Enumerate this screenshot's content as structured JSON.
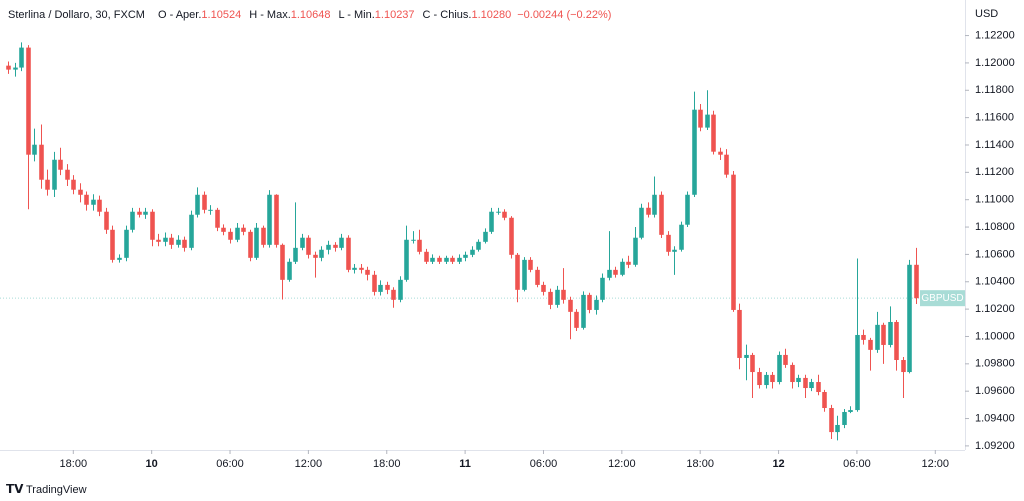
{
  "chart_data": {
    "type": "candlestick",
    "title": "Sterlina / Dollaro, 30, FXCM",
    "ohlc_legend": [
      {
        "label": "O - Aper.",
        "value": "1.10524"
      },
      {
        "label": "H - Max.",
        "value": "1.10648"
      },
      {
        "label": "L - Min.",
        "value": "1.10237"
      },
      {
        "label": "C - Chius.",
        "value": "1.10280"
      }
    ],
    "change": "−0.00244 (−0.22%)",
    "symbol": "GBPUSD",
    "currency": "USD",
    "up_color": "#26a69a",
    "down_color": "#ef5350",
    "grid": false,
    "open": [
      1.1198,
      1.11951,
      1.11966,
      1.12112,
      1.11329,
      1.11402,
      1.11146,
      1.11073,
      1.11292,
      1.11219,
      1.11146,
      1.11073,
      1.11036,
      1.10963,
      1.11,
      1.10912,
      1.1078,
      1.1056,
      1.10575,
      1.1078,
      1.10912,
      1.1089,
      1.10912,
      1.10707,
      1.10692,
      1.10722,
      1.1067,
      1.10707,
      1.10648,
      1.1089,
      1.11036,
      1.10926,
      1.10926,
      1.10795,
      1.10765,
      1.10707,
      1.10795,
      1.10765,
      1.10575,
      1.10795,
      1.1067,
      1.11036,
      1.1067,
      1.10414,
      1.10546,
      1.10648,
      1.10722,
      1.10597,
      1.10575,
      1.10634,
      1.1067,
      1.10648,
      1.10722,
      1.10487,
      1.10502,
      1.10487,
      1.10451,
      1.10326,
      1.10377,
      1.10341,
      1.10268,
      1.10414,
      1.10707,
      1.10707,
      1.10619,
      1.10546,
      1.10575,
      1.10546,
      1.10575,
      1.10546,
      1.10575,
      1.10597,
      1.10634,
      1.10692,
      1.10765,
      1.10912,
      1.10912,
      1.10868,
      1.10597,
      1.10341,
      1.1056,
      1.10487,
      1.10377,
      1.10326,
      1.10231,
      1.10341,
      1.10268,
      1.1018,
      1.10063,
      1.10304,
      1.10194,
      1.10268,
      1.10429,
      1.10487,
      1.10451,
      1.10546,
      1.10524,
      1.10722,
      1.10941,
      1.1089,
      1.11036,
      1.10743,
      1.10619,
      1.10634,
      1.10817,
      1.11036,
      1.11658,
      1.11527,
      1.11622,
      1.11351,
      1.11329,
      1.11183,
      1.10194,
      1.09843,
      1.09865,
      1.0974,
      1.09645,
      1.09719,
      1.09667,
      1.09865,
      1.09792,
      1.09667,
      1.09697,
      1.09623,
      1.09667,
      1.09594,
      1.09477,
      1.09301,
      1.09353,
      1.09448,
      1.09462,
      1.10011,
      1.09975,
      1.09902,
      1.10085,
      1.09938,
      1.10106,
      1.09828,
      1.0974,
      1.10524
    ],
    "high": [
      1.1201,
      1.12,
      1.1215,
      1.1213,
      1.1152,
      1.1155,
      1.1122,
      1.1135,
      1.1138,
      1.1126,
      1.1118,
      1.1112,
      1.1106,
      1.1104,
      1.1103,
      1.1094,
      1.1081,
      1.106,
      1.1081,
      1.1094,
      1.1094,
      1.1094,
      1.1093,
      1.1075,
      1.1076,
      1.1075,
      1.1074,
      1.1073,
      1.1092,
      1.1109,
      1.1106,
      1.1096,
      1.1094,
      1.1082,
      1.1079,
      1.1083,
      1.1082,
      1.1078,
      1.1083,
      1.1081,
      1.1107,
      1.1104,
      1.1068,
      1.1057,
      1.1098,
      1.1075,
      1.1074,
      1.1062,
      1.1066,
      1.107,
      1.1069,
      1.1075,
      1.1074,
      1.1053,
      1.1053,
      1.1051,
      1.1048,
      1.1041,
      1.104,
      1.1036,
      1.1044,
      1.1081,
      1.1077,
      1.1078,
      1.1064,
      1.106,
      1.1059,
      1.1059,
      1.1059,
      1.106,
      1.1062,
      1.1066,
      1.1071,
      1.1079,
      1.1094,
      1.1094,
      1.1093,
      1.1088,
      1.1061,
      1.1058,
      1.1058,
      1.1051,
      1.104,
      1.1035,
      1.1037,
      1.105,
      1.1029,
      1.102,
      1.1033,
      1.1032,
      1.103,
      1.1046,
      1.1077,
      1.1051,
      1.1057,
      1.1059,
      1.108,
      1.1097,
      1.1098,
      1.1117,
      1.1106,
      1.1077,
      1.1066,
      1.1084,
      1.1106,
      1.1179,
      1.117,
      1.118,
      1.1165,
      1.1138,
      1.1137,
      1.1121,
      1.1024,
      1.0994,
      1.0988,
      1.0977,
      1.0974,
      1.0974,
      1.0989,
      1.0991,
      1.0981,
      1.0972,
      1.0972,
      1.0969,
      1.0972,
      1.0961,
      1.095,
      1.0942,
      1.0947,
      1.0949,
      1.1057,
      1.1005,
      1.0999,
      1.1018,
      1.101,
      1.1022,
      1.1012,
      1.0985,
      1.1056,
      1.10648
    ],
    "low": [
      1.1192,
      1.119,
      1.1194,
      1.1093,
      1.1128,
      1.1108,
      1.1103,
      1.1102,
      1.1118,
      1.111,
      1.1104,
      1.1098,
      1.1092,
      1.1092,
      1.1088,
      1.1075,
      1.1054,
      1.1054,
      1.1055,
      1.1076,
      1.1087,
      1.1086,
      1.1066,
      1.1066,
      1.1066,
      1.1064,
      1.1065,
      1.1062,
      1.1063,
      1.1087,
      1.109,
      1.1089,
      1.1077,
      1.1074,
      1.1068,
      1.1069,
      1.1074,
      1.1055,
      1.1056,
      1.1065,
      1.1065,
      1.1065,
      1.1027,
      1.104,
      1.1053,
      1.1063,
      1.1057,
      1.1043,
      1.1055,
      1.106,
      1.1062,
      1.1063,
      1.1047,
      1.1046,
      1.1046,
      1.1041,
      1.103,
      1.103,
      1.1031,
      1.1021,
      1.1025,
      1.104,
      1.1068,
      1.106,
      1.1053,
      1.1053,
      1.1053,
      1.1053,
      1.1053,
      1.1053,
      1.1055,
      1.1058,
      1.1062,
      1.1068,
      1.1075,
      1.1089,
      1.1085,
      1.1057,
      1.1025,
      1.1033,
      1.1047,
      1.1036,
      1.103,
      1.102,
      1.1021,
      1.1024,
      1.0998,
      1.1004,
      1.1005,
      1.1017,
      1.1016,
      1.1025,
      1.1041,
      1.1043,
      1.1044,
      1.105,
      1.1051,
      1.1071,
      1.1087,
      1.1087,
      1.1072,
      1.1059,
      1.1045,
      1.1062,
      1.108,
      1.1102,
      1.115,
      1.1151,
      1.1133,
      1.1129,
      1.1116,
      1.1018,
      1.0976,
      1.0968,
      1.0955,
      1.0962,
      1.0962,
      1.0962,
      1.0965,
      1.0977,
      1.0962,
      1.0963,
      1.0955,
      1.096,
      1.0957,
      1.0945,
      1.0925,
      1.0924,
      1.0933,
      1.0944,
      1.0945,
      1.0994,
      1.0975,
      1.0988,
      1.098,
      1.0992,
      1.0975,
      1.0955,
      1.0973,
      1.10237
    ],
    "close": [
      1.11951,
      1.11966,
      1.12112,
      1.11329,
      1.11402,
      1.11146,
      1.11073,
      1.11292,
      1.11219,
      1.11146,
      1.11073,
      1.11036,
      1.10963,
      1.11,
      1.10912,
      1.1078,
      1.1056,
      1.10575,
      1.1078,
      1.10912,
      1.1089,
      1.10912,
      1.10707,
      1.10692,
      1.10722,
      1.1067,
      1.10707,
      1.10648,
      1.1089,
      1.11036,
      1.10926,
      1.10926,
      1.10795,
      1.10765,
      1.10707,
      1.10795,
      1.10765,
      1.10575,
      1.10795,
      1.1067,
      1.11036,
      1.1067,
      1.10414,
      1.10546,
      1.10648,
      1.10722,
      1.10597,
      1.10575,
      1.10634,
      1.1067,
      1.10648,
      1.10722,
      1.10487,
      1.10502,
      1.10487,
      1.10451,
      1.10326,
      1.10377,
      1.10341,
      1.10268,
      1.10414,
      1.10707,
      1.10707,
      1.10619,
      1.10546,
      1.10575,
      1.10546,
      1.10575,
      1.10546,
      1.10575,
      1.10597,
      1.10634,
      1.10692,
      1.10765,
      1.10912,
      1.10912,
      1.10868,
      1.10597,
      1.10341,
      1.1056,
      1.10487,
      1.10377,
      1.10326,
      1.10231,
      1.10341,
      1.10268,
      1.1018,
      1.10063,
      1.10304,
      1.10194,
      1.10268,
      1.10429,
      1.10487,
      1.10451,
      1.10546,
      1.10524,
      1.10722,
      1.10941,
      1.1089,
      1.11036,
      1.10743,
      1.10619,
      1.10634,
      1.10817,
      1.11036,
      1.11658,
      1.11527,
      1.11622,
      1.11351,
      1.11329,
      1.11183,
      1.10194,
      1.09843,
      1.09865,
      1.0974,
      1.09645,
      1.09719,
      1.09667,
      1.09865,
      1.09792,
      1.09667,
      1.09697,
      1.09623,
      1.09667,
      1.09594,
      1.09477,
      1.09301,
      1.09353,
      1.09448,
      1.09462,
      1.10011,
      1.09975,
      1.09902,
      1.10085,
      1.09938,
      1.10106,
      1.09828,
      1.0974,
      1.10524,
      1.1028
    ],
    "ylim": [
      1.0917,
      1.1246
    ],
    "yticks": [
      {
        "value": 1.092,
        "label": "1.09200"
      },
      {
        "value": 1.094,
        "label": "1.09400"
      },
      {
        "value": 1.096,
        "label": "1.09600"
      },
      {
        "value": 1.098,
        "label": "1.09800"
      },
      {
        "value": 1.1,
        "label": "1.10000"
      },
      {
        "value": 1.102,
        "label": "1.10200"
      },
      {
        "value": 1.104,
        "label": "1.10400"
      },
      {
        "value": 1.106,
        "label": "1.10600"
      },
      {
        "value": 1.108,
        "label": "1.10800"
      },
      {
        "value": 1.11,
        "label": "1.11000"
      },
      {
        "value": 1.112,
        "label": "1.11200"
      },
      {
        "value": 1.114,
        "label": "1.11400"
      },
      {
        "value": 1.116,
        "label": "1.11600"
      },
      {
        "value": 1.118,
        "label": "1.11800"
      },
      {
        "value": 1.12,
        "label": "1.12000"
      },
      {
        "value": 1.122,
        "label": "1.12200"
      }
    ],
    "xlim": [
      -1.225,
      146.55
    ],
    "xticks": [
      {
        "value": 10,
        "label": "18:00"
      },
      {
        "value": 22,
        "label": "10"
      },
      {
        "value": 34,
        "label": "06:00"
      },
      {
        "value": 46,
        "label": "12:00"
      },
      {
        "value": 58,
        "label": "18:00"
      },
      {
        "value": 70,
        "label": "11"
      },
      {
        "value": 82,
        "label": "06:00"
      },
      {
        "value": 94,
        "label": "12:00"
      },
      {
        "value": 106,
        "label": "18:00"
      },
      {
        "value": 118,
        "label": "12"
      },
      {
        "value": 130,
        "label": "06:00"
      },
      {
        "value": 142,
        "label": "12:00"
      }
    ]
  },
  "branding": "TradingView"
}
